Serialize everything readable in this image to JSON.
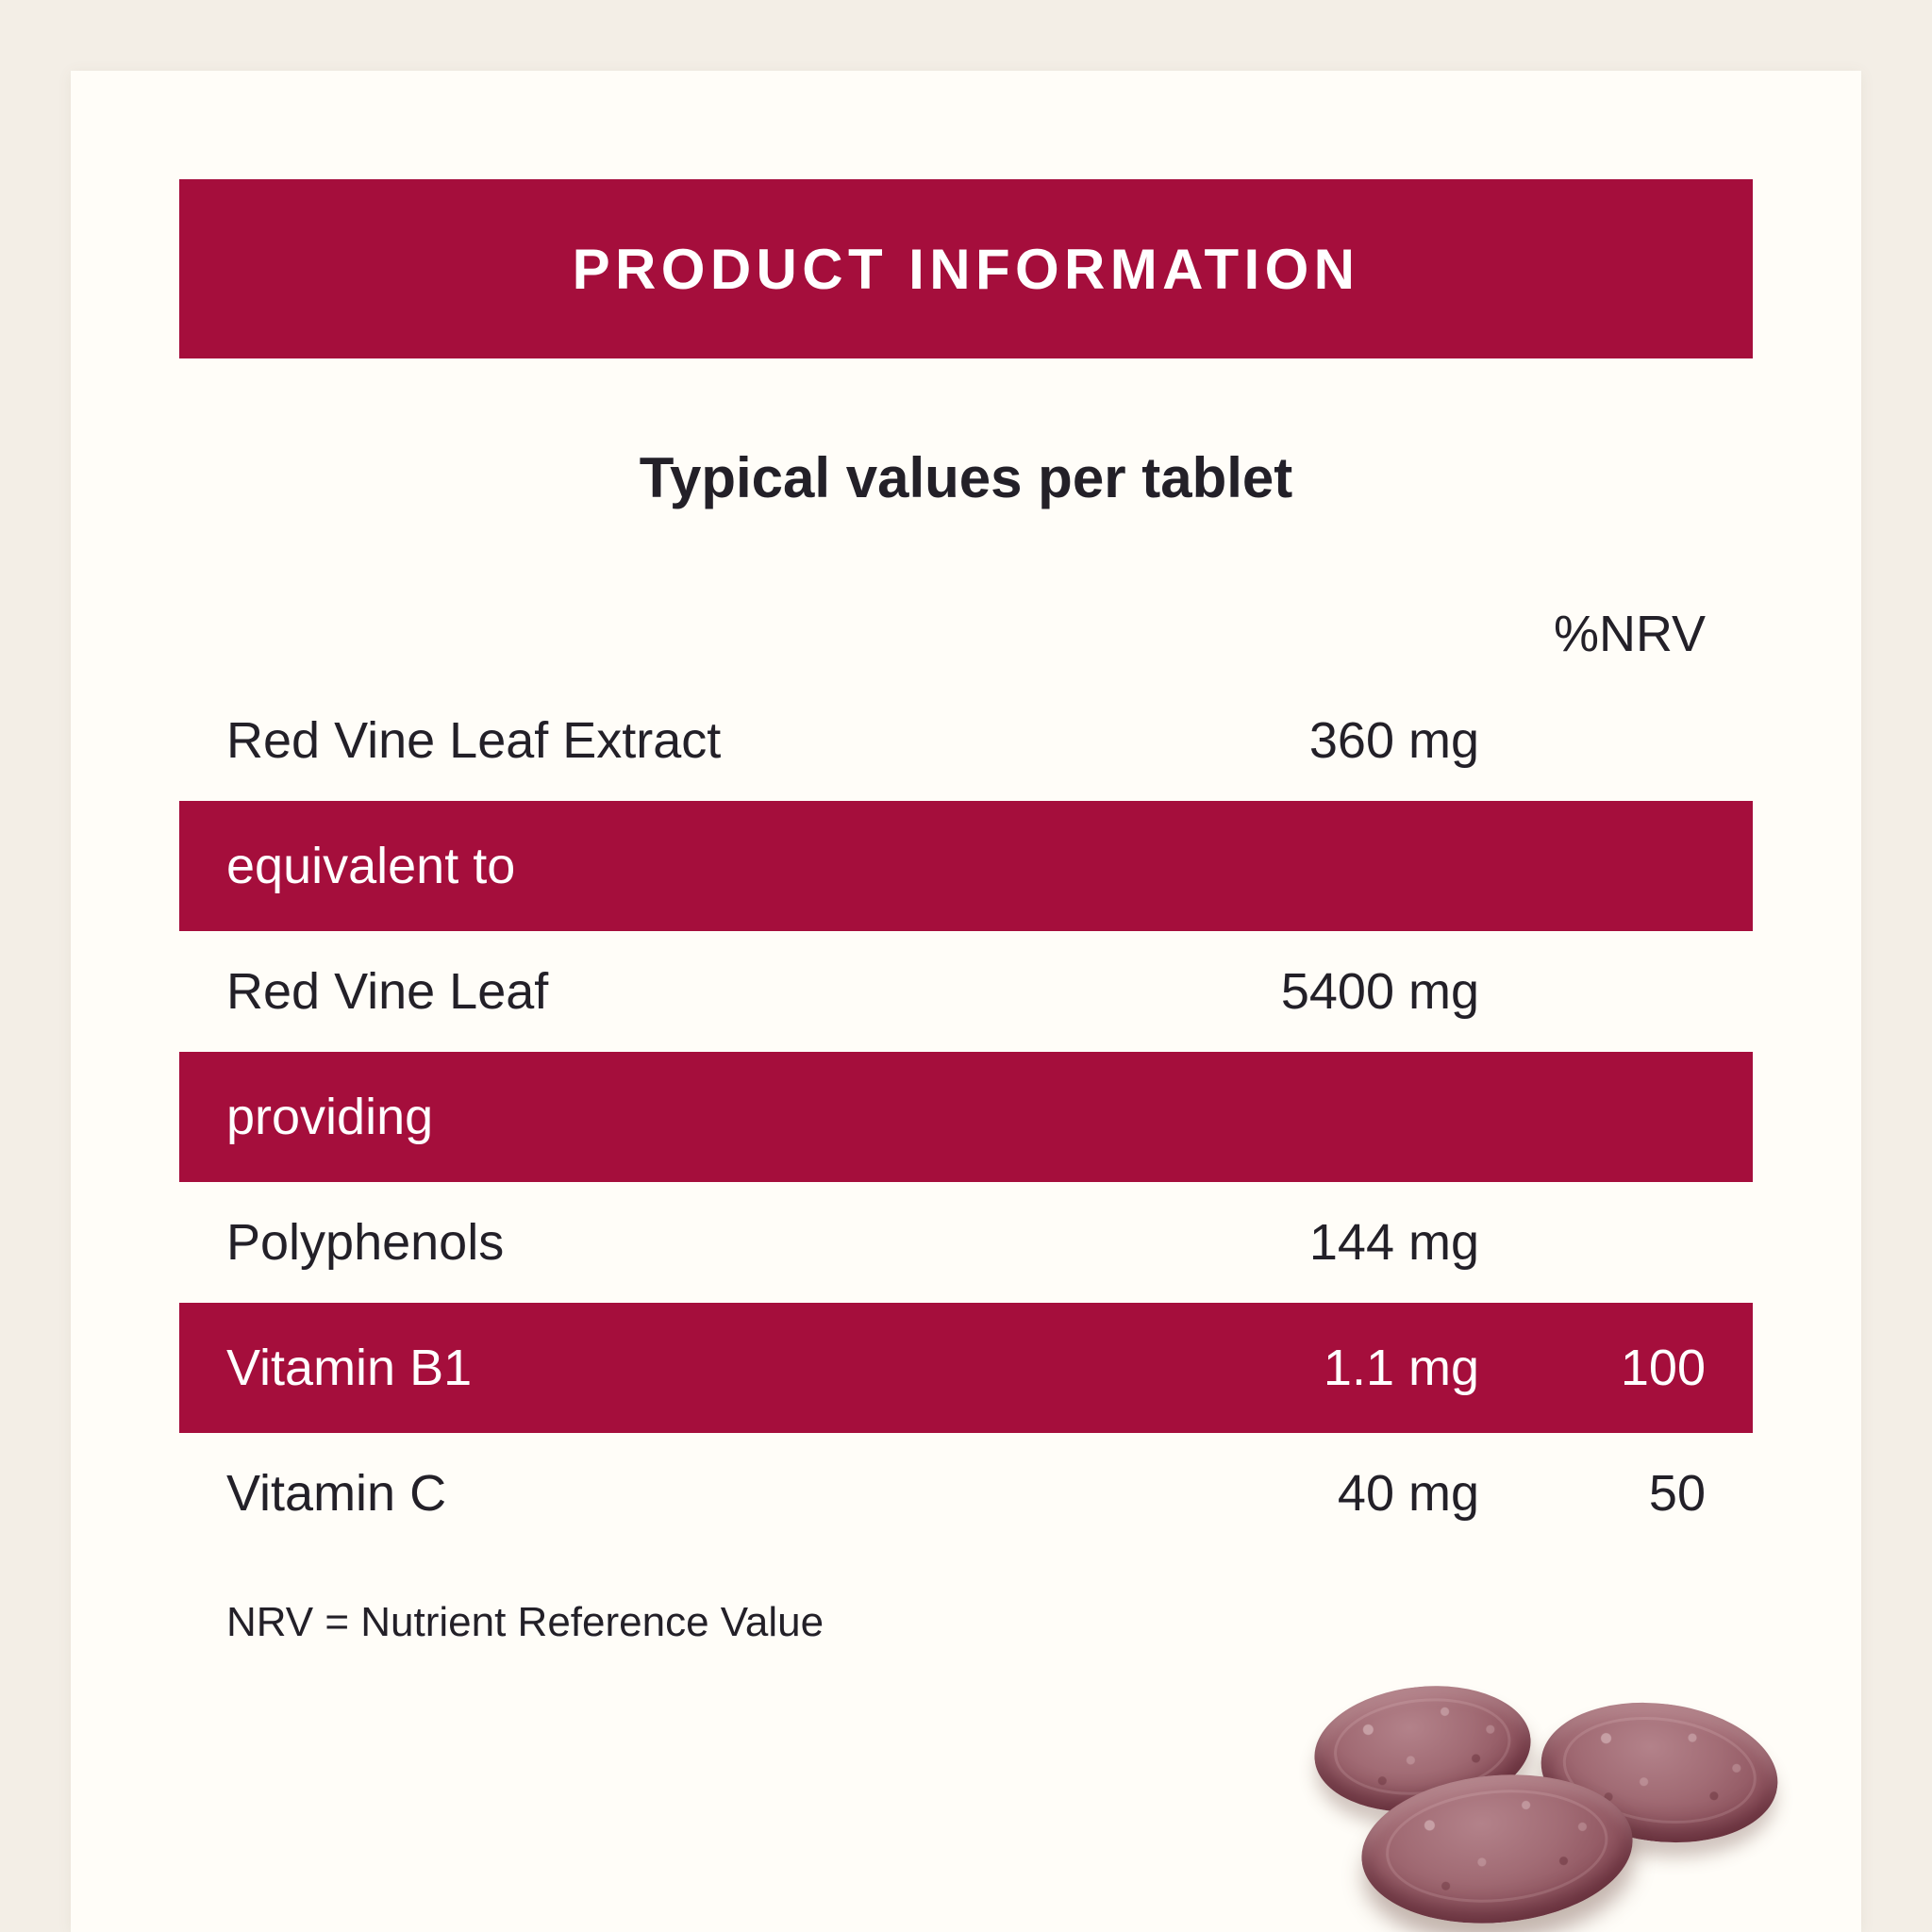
{
  "colors": {
    "banner_red": "#A50E3C",
    "card_background": "#FFFDF8",
    "page_background": "#F3EEE6",
    "text_dark": "#232028",
    "text_light": "#FFFFFF"
  },
  "header": {
    "title": "PRODUCT INFORMATION"
  },
  "table": {
    "subtitle": "Typical values per tablet",
    "nrv_header": "%NRV",
    "rows": [
      {
        "type": "value",
        "label": "Red Vine Leaf Extract",
        "amount": "360 mg",
        "nrv": ""
      },
      {
        "type": "band",
        "label": "equivalent to",
        "amount": "",
        "nrv": ""
      },
      {
        "type": "value",
        "label": "Red Vine Leaf",
        "amount": "5400 mg",
        "nrv": ""
      },
      {
        "type": "band",
        "label": "providing",
        "amount": "",
        "nrv": ""
      },
      {
        "type": "value",
        "label": "Polyphenols",
        "amount": "144 mg",
        "nrv": ""
      },
      {
        "type": "band",
        "label": "Vitamin B1",
        "amount": "1.1 mg",
        "nrv": "100"
      },
      {
        "type": "value",
        "label": "Vitamin C",
        "amount": "40 mg",
        "nrv": "50"
      }
    ],
    "footnote": "NRV = Nutrient Reference Value"
  },
  "image": {
    "tablets": "three burgundy red-vine-leaf tablets"
  }
}
